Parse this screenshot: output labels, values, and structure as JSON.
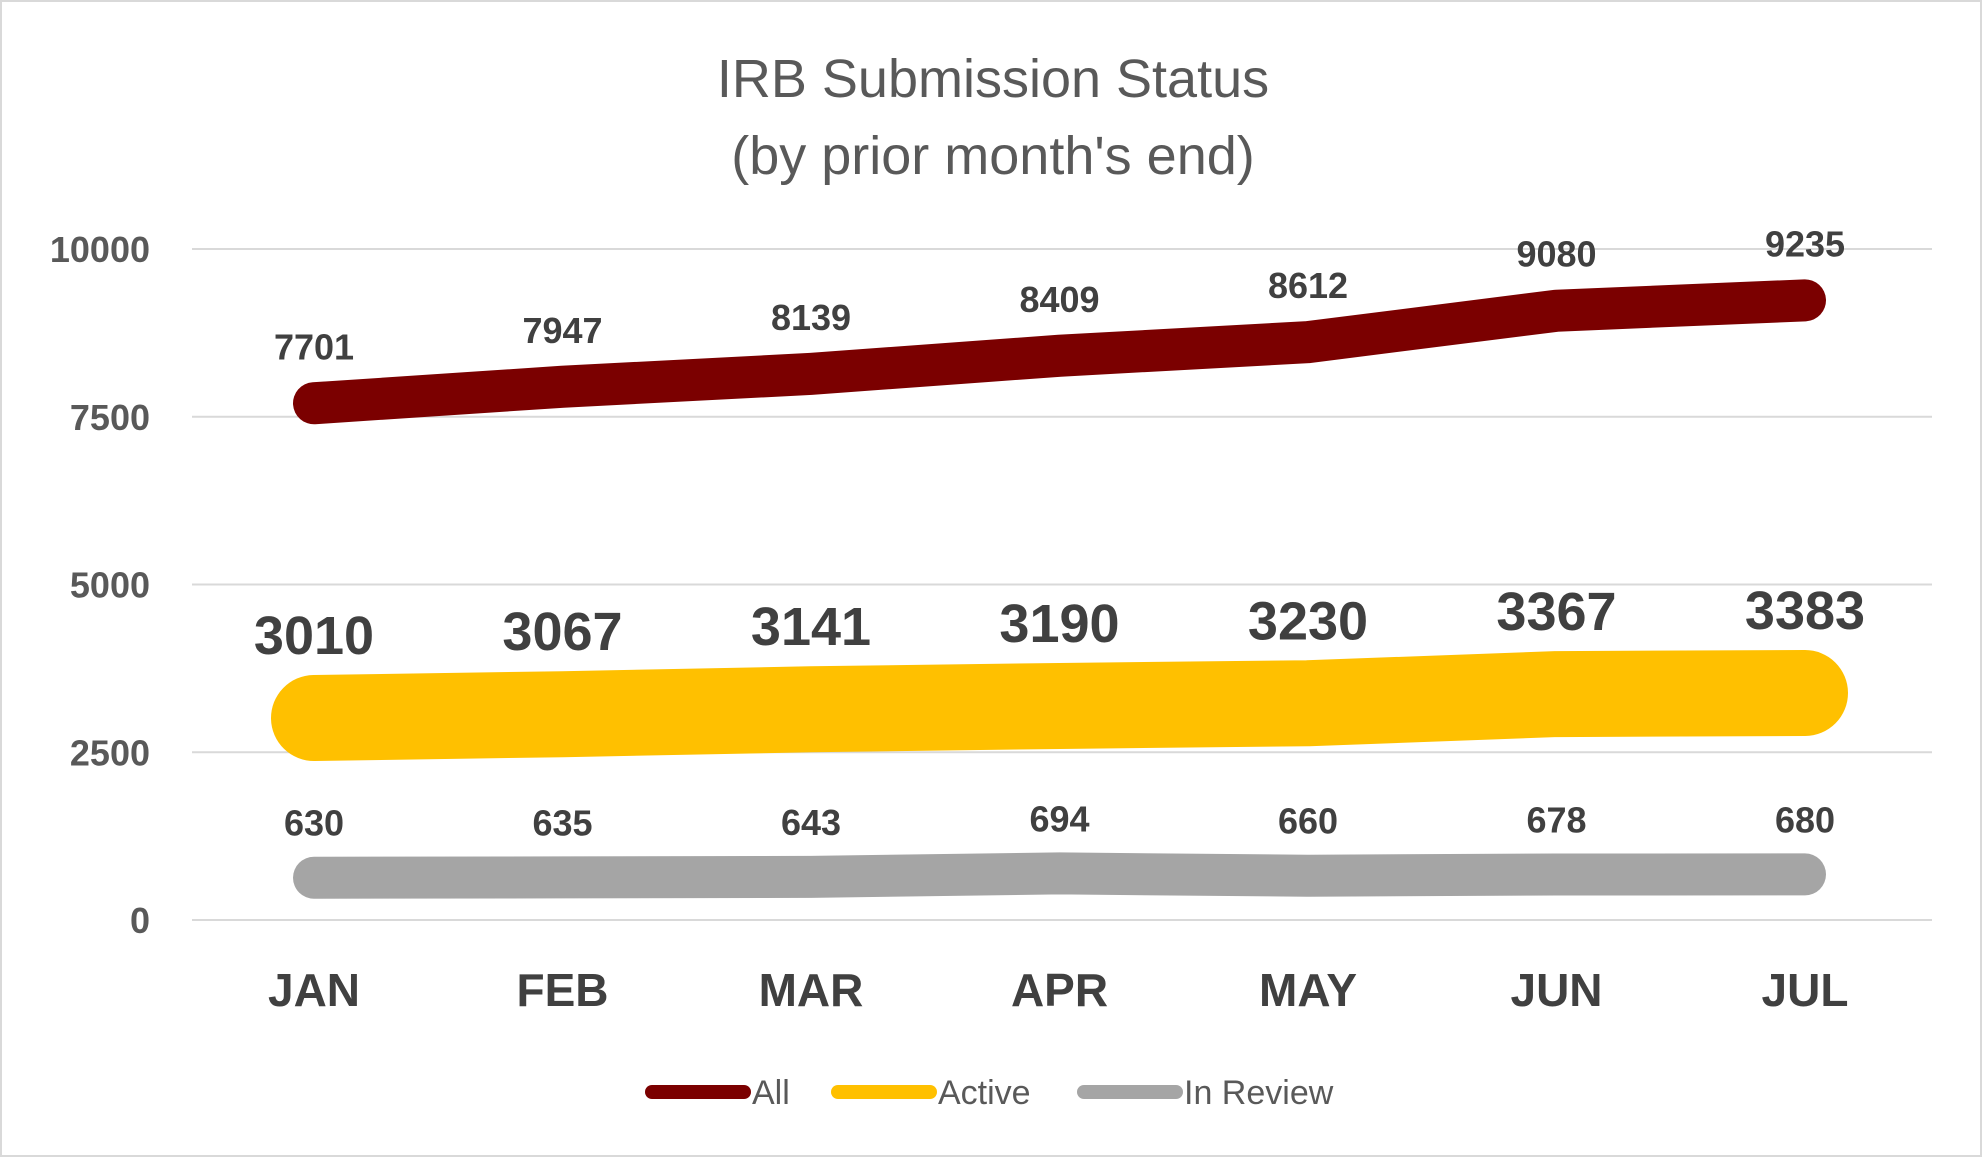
{
  "chart_data": {
    "type": "line",
    "title_lines": [
      "IRB Submission Status",
      "(by prior month's end)"
    ],
    "categories": [
      "JAN",
      "FEB",
      "MAR",
      "APR",
      "MAY",
      "JUN",
      "JUL"
    ],
    "ylim": [
      0,
      10000
    ],
    "yticks": [
      0,
      2500,
      5000,
      7500,
      10000
    ],
    "grid": true,
    "legend_position": "bottom",
    "series": [
      {
        "name": "All",
        "color": "#7B0000",
        "values": [
          7701,
          7947,
          8139,
          8409,
          8612,
          9080,
          9235
        ]
      },
      {
        "name": "Active",
        "color": "#FFC000",
        "values": [
          3010,
          3067,
          3141,
          3190,
          3230,
          3367,
          3383
        ]
      },
      {
        "name": "In Review",
        "color": "#A5A5A5",
        "values": [
          630,
          635,
          643,
          694,
          660,
          678,
          680
        ]
      }
    ]
  }
}
